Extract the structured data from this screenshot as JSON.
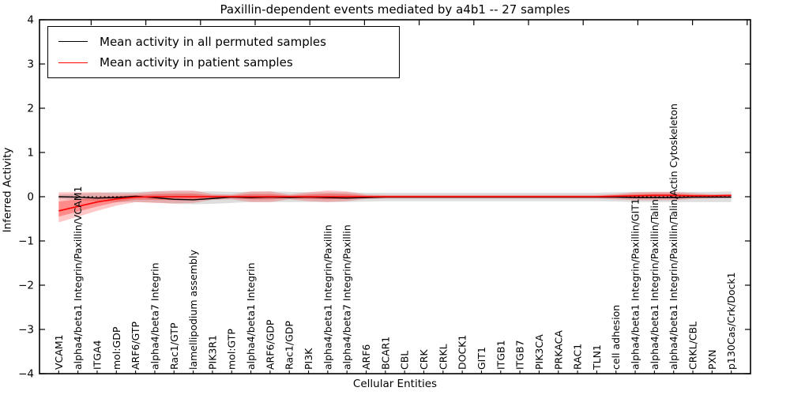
{
  "figure": {
    "title": "Paxillin-dependent events mediated by a4b1 -- 27 samples",
    "xlabel": "Cellular Entities",
    "ylabel": "Inferred Activity"
  },
  "legend": {
    "items": [
      {
        "label": "Mean activity in all permuted samples",
        "color": "#000000"
      },
      {
        "label": "Mean activity in patient samples",
        "color": "#ff0000"
      }
    ],
    "position": "upper left"
  },
  "chart_data": {
    "type": "line",
    "title": "Paxillin-dependent events mediated by a4b1 -- 27 samples",
    "xlabel": "Cellular Entities",
    "ylabel": "Inferred Activity",
    "ylim": [
      -4,
      4
    ],
    "yticks": [
      -4,
      -3,
      -2,
      -1,
      0,
      1,
      2,
      3,
      4
    ],
    "grid": false,
    "legend_position": "upper left",
    "zero_line": {
      "y": 0,
      "style": "dashed",
      "color": "#000000"
    },
    "categories": [
      "VCAM1",
      "alpha4/beta1 Integrin/Paxillin/VCAM1",
      "ITGA4",
      "mol:GDP",
      "ARF6/GTP",
      "alpha4/beta7 Integrin",
      "Rac1/GTP",
      "lamellipodium assembly",
      "PIK3R1",
      "mol:GTP",
      "alpha4/beta1 Integrin",
      "ARF6/GDP",
      "Rac1/GDP",
      "PI3K",
      "alpha4/beta1 Integrin/Paxillin",
      "alpha4/beta7 Integrin/Paxillin",
      "ARF6",
      "BCAR1",
      "CBL",
      "CRK",
      "CRKL",
      "DOCK1",
      "GIT1",
      "ITGB1",
      "ITGB7",
      "PIK3CA",
      "PRKACA",
      "RAC1",
      "TLN1",
      "cell adhesion",
      "alpha4/beta1 Integrin/Paxillin/GIT1",
      "alpha4/beta1 Integrin/Paxillin/Talin",
      "alpha4/beta1 Integrin/Paxillin/Talin/Actin Cytoskeleton",
      "CRKL/CBL",
      "PXN",
      "p130Cas/Crk/Dock1"
    ],
    "series": [
      {
        "name": "Mean activity in all permuted samples",
        "color": "#000000",
        "band_color": "rgba(70,70,70,0.18)",
        "values": [
          0.0,
          -0.01,
          -0.03,
          -0.02,
          0.01,
          -0.02,
          -0.06,
          -0.07,
          -0.04,
          -0.01,
          -0.02,
          -0.01,
          -0.02,
          -0.01,
          -0.02,
          -0.03,
          -0.02,
          -0.01,
          -0.01,
          -0.01,
          -0.01,
          -0.01,
          -0.01,
          -0.01,
          -0.01,
          -0.01,
          -0.01,
          -0.01,
          -0.01,
          -0.01,
          -0.02,
          -0.02,
          -0.02,
          -0.01,
          -0.01,
          -0.01
        ],
        "band_upper": [
          0.05,
          0.07,
          0.09,
          0.11,
          0.11,
          0.12,
          0.12,
          0.12,
          0.12,
          0.11,
          0.11,
          0.12,
          0.11,
          0.1,
          0.1,
          0.1,
          0.09,
          0.09,
          0.09,
          0.09,
          0.09,
          0.09,
          0.09,
          0.09,
          0.09,
          0.09,
          0.09,
          0.09,
          0.09,
          0.1,
          0.11,
          0.11,
          0.11,
          0.11,
          0.11,
          0.12
        ],
        "band_lower": [
          -0.05,
          -0.08,
          -0.1,
          -0.12,
          -0.12,
          -0.13,
          -0.16,
          -0.17,
          -0.16,
          -0.14,
          -0.12,
          -0.12,
          -0.12,
          -0.12,
          -0.12,
          -0.12,
          -0.11,
          -0.1,
          -0.1,
          -0.1,
          -0.1,
          -0.1,
          -0.1,
          -0.1,
          -0.1,
          -0.1,
          -0.1,
          -0.1,
          -0.1,
          -0.11,
          -0.12,
          -0.12,
          -0.12,
          -0.12,
          -0.12,
          -0.12
        ]
      },
      {
        "name": "Mean activity in patient samples",
        "color": "#ff0000",
        "band_color": "rgba(255,0,0,0.22)",
        "band_inner_color": "rgba(255,0,0,0.30)",
        "values": [
          -0.32,
          -0.22,
          -0.12,
          -0.05,
          -0.01,
          0.0,
          0.0,
          0.0,
          0.0,
          0.0,
          0.0,
          0.0,
          0.0,
          0.0,
          0.0,
          0.0,
          0.0,
          0.0,
          0.0,
          0.0,
          0.0,
          0.0,
          0.0,
          0.0,
          0.0,
          0.0,
          0.0,
          0.0,
          0.0,
          0.01,
          0.02,
          0.03,
          0.03,
          0.02,
          0.02,
          0.03
        ],
        "band_upper": [
          0.1,
          0.1,
          0.1,
          0.08,
          0.08,
          0.12,
          0.14,
          0.14,
          0.06,
          0.05,
          0.12,
          0.12,
          0.05,
          0.1,
          0.14,
          0.12,
          0.05,
          0.04,
          0.04,
          0.04,
          0.04,
          0.04,
          0.04,
          0.04,
          0.04,
          0.04,
          0.04,
          0.04,
          0.04,
          0.06,
          0.1,
          0.11,
          0.11,
          0.08,
          0.06,
          0.06
        ],
        "band_lower": [
          -0.58,
          -0.45,
          -0.32,
          -0.2,
          -0.12,
          -0.14,
          -0.15,
          -0.14,
          -0.07,
          -0.06,
          -0.12,
          -0.12,
          -0.06,
          -0.1,
          -0.12,
          -0.1,
          -0.05,
          -0.04,
          -0.04,
          -0.04,
          -0.04,
          -0.04,
          -0.04,
          -0.04,
          -0.04,
          -0.04,
          -0.04,
          -0.04,
          -0.04,
          -0.06,
          -0.08,
          -0.08,
          -0.08,
          -0.05,
          -0.04,
          -0.03
        ]
      }
    ]
  }
}
